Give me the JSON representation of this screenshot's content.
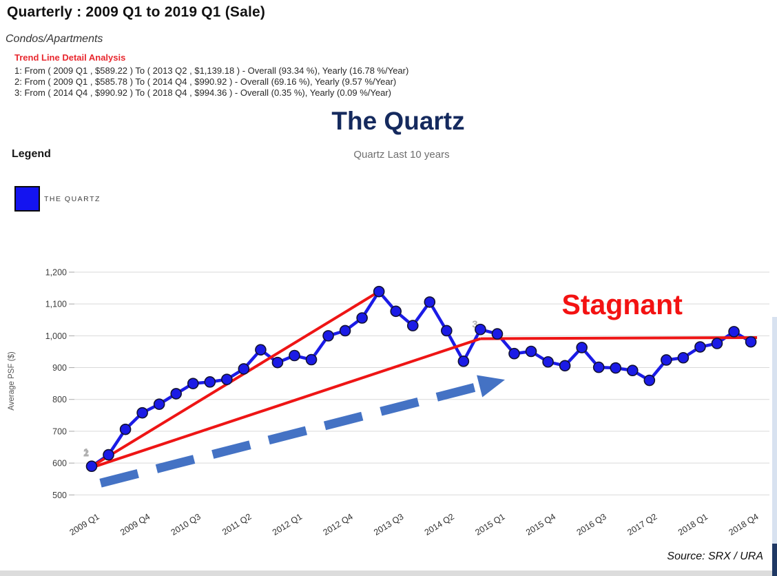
{
  "page": {
    "title": "Quarterly : 2009 Q1 to 2019 Q1 (Sale)",
    "subtitle": "Condos/Apartments",
    "source": "Source: SRX / URA"
  },
  "trend_analysis": {
    "heading": "Trend Line Detail Analysis",
    "lines": [
      "1: From ( 2009 Q1 , $589.22 ) To ( 2013 Q2 , $1,139.18 )  -  Overall (93.34 %), Yearly (16.78 %/Year)",
      "2: From ( 2009 Q1 , $585.78 ) To ( 2014 Q4 , $990.92 )  -  Overall (69.16 %), Yearly (9.57 %/Year)",
      "3: From ( 2014 Q4 , $990.92 ) To ( 2018 Q4 , $994.36 )  -  Overall (0.35 %), Yearly (0.09 %/Year)"
    ]
  },
  "overlay": {
    "main_title": "The Quartz",
    "stagnant_label": "Stagnant"
  },
  "legend": {
    "heading": "Legend",
    "items": [
      {
        "label": "THE QUARTZ",
        "color": "#1414f0"
      }
    ]
  },
  "colors": {
    "series_blue": "#1b1be6",
    "point_outline": "#111133",
    "trend_red": "#ee1515",
    "arrow_blue": "#4472c4",
    "stagnant_red": "#f31212",
    "grid": "#d9d9d9",
    "axis_text": "#3d3d3d",
    "trend_label_gray": "#b0b0b0"
  },
  "chart_data": {
    "type": "line",
    "title": "Quartz Last 10 years",
    "xlabel": "",
    "ylabel": "Average PSF ($)",
    "ylim": [
      500,
      1200
    ],
    "ytick_interval": 100,
    "grid": true,
    "legend_position": "top-left",
    "quarters": [
      "2009 Q1",
      "2009 Q2",
      "2009 Q3",
      "2009 Q4",
      "2010 Q1",
      "2010 Q2",
      "2010 Q3",
      "2010 Q4",
      "2011 Q1",
      "2011 Q2",
      "2011 Q3",
      "2011 Q4",
      "2012 Q1",
      "2012 Q2",
      "2012 Q3",
      "2012 Q4",
      "2013 Q1",
      "2013 Q2",
      "2013 Q3",
      "2013 Q4",
      "2014 Q1",
      "2014 Q2",
      "2014 Q3",
      "2014 Q4",
      "2015 Q1",
      "2015 Q2",
      "2015 Q3",
      "2015 Q4",
      "2016 Q1",
      "2016 Q2",
      "2016 Q3",
      "2016 Q4",
      "2017 Q1",
      "2017 Q2",
      "2017 Q3",
      "2017 Q4",
      "2018 Q1",
      "2018 Q2",
      "2018 Q3",
      "2018 Q4"
    ],
    "series": [
      {
        "name": "THE QUARTZ",
        "values": [
          590,
          626,
          706,
          758,
          785,
          818,
          850,
          855,
          863,
          896,
          956,
          916,
          938,
          925,
          1000,
          1016,
          1056,
          1139,
          1077,
          1032,
          1106,
          1016,
          920,
          1020,
          1006,
          944,
          951,
          918,
          906,
          963,
          901,
          899,
          891,
          860,
          924,
          931,
          965,
          976,
          1013,
          981
        ]
      }
    ],
    "xtick_labels": [
      "2009 Q1",
      "2009 Q4",
      "2010 Q3",
      "2011 Q2",
      "2012 Q1",
      "2012 Q4",
      "2013 Q3",
      "2014 Q2",
      "2015 Q1",
      "2015 Q4",
      "2016 Q3",
      "2017 Q2",
      "2018 Q1",
      "2018 Q4"
    ],
    "trend_lines": [
      {
        "label": "1",
        "from_x": "2009 Q1",
        "from_y": 589.22,
        "to_x": "2013 Q2",
        "to_y": 1139.18,
        "overall_pct": 93.34,
        "yearly_pct": 16.78,
        "extend": false
      },
      {
        "label": "2",
        "from_x": "2009 Q1",
        "from_y": 585.78,
        "to_x": "2014 Q4",
        "to_y": 990.92,
        "overall_pct": 69.16,
        "yearly_pct": 9.57,
        "extend": false
      },
      {
        "label": "3",
        "from_x": "2014 Q4",
        "from_y": 990.92,
        "to_x": "2018 Q4",
        "to_y": 994.36,
        "overall_pct": 0.35,
        "yearly_pct": 0.09,
        "extend": true
      }
    ],
    "annotations": {
      "stagnant": {
        "text": "Stagnant",
        "near_quarter": "2016 Q3",
        "near_value": 1100
      },
      "arrow": {
        "from_quarter_index": 0.53,
        "from_value": 537,
        "to_quarter_index": 24.45,
        "to_value": 862
      }
    }
  }
}
